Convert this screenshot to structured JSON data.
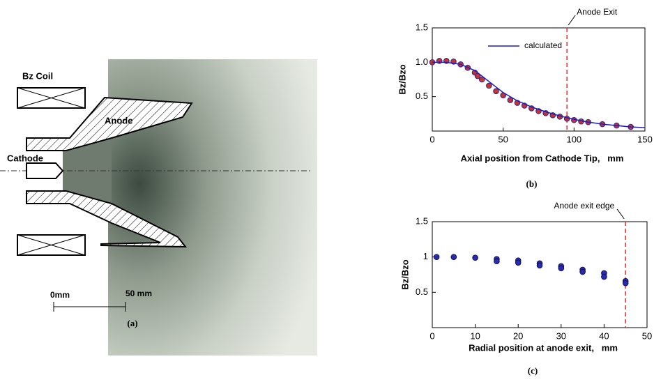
{
  "panel_a": {
    "coil": "Bz Coil",
    "anode": "Anode",
    "cathode": "Cathode",
    "scale_start": "0mm",
    "scale_end": "50 mm",
    "caption": "(a)"
  },
  "chart_data": [
    {
      "type": "scatter",
      "caption": "(b)",
      "ylabel": "Bz/Bzo",
      "xlabel": "Axial position from Cathode Tip,   mm",
      "xlim": [
        0,
        150
      ],
      "xticks": [
        0,
        50,
        100,
        150
      ],
      "ylim": [
        0,
        1.5
      ],
      "yticks": [
        0.5,
        {
          "value": 1,
          "label": "1.0"
        },
        1.5
      ],
      "legend": "upper left",
      "annotations": [
        {
          "text": "Anode Exit",
          "x": 95,
          "color": "#e03030"
        }
      ],
      "series": [
        {
          "style": "marker",
          "color": "#c8322a",
          "edgecolor": "#1f2a9c",
          "x": [
            0,
            5,
            10,
            15,
            20,
            25,
            30,
            32,
            35,
            40,
            45,
            50,
            55,
            60,
            65,
            70,
            75,
            80,
            85,
            90,
            95,
            100,
            105,
            110,
            120,
            130,
            140
          ],
          "values": [
            1.0,
            1.02,
            1.02,
            1.01,
            0.97,
            0.92,
            0.85,
            0.8,
            0.75,
            0.66,
            0.58,
            0.52,
            0.45,
            0.41,
            0.37,
            0.33,
            0.29,
            0.26,
            0.23,
            0.21,
            0.18,
            0.16,
            0.14,
            0.13,
            0.1,
            0.08,
            0.06
          ]
        },
        {
          "style": "line",
          "name": "calculated",
          "color": "#1c1cc8",
          "x": [
            0,
            10,
            20,
            30,
            40,
            50,
            60,
            70,
            80,
            90,
            100,
            110,
            120,
            130,
            140,
            150
          ],
          "values": [
            1.0,
            1.0,
            0.97,
            0.88,
            0.72,
            0.56,
            0.44,
            0.35,
            0.28,
            0.22,
            0.17,
            0.13,
            0.1,
            0.08,
            0.06,
            0.05
          ]
        }
      ]
    },
    {
      "type": "scatter",
      "caption": "(c)",
      "ylabel": "Bz/Bzo",
      "xlabel": "Radial position at anode exit,   mm",
      "xlim": [
        0,
        50
      ],
      "xticks": [
        0,
        10,
        20,
        30,
        40,
        50
      ],
      "ylim": [
        0,
        1.5
      ],
      "yticks": [
        0.5,
        1,
        1.5
      ],
      "annotations": [
        {
          "text": "Anode exit edge",
          "x": 45,
          "color": "#e03030"
        }
      ],
      "series": [
        {
          "style": "marker",
          "color": "#2a2ab0",
          "edgecolor": "#10105a",
          "x": [
            1,
            5,
            10,
            15,
            15,
            20,
            20,
            25,
            25,
            30,
            30,
            35,
            35,
            40,
            40,
            45,
            45
          ],
          "values": [
            1.0,
            1.0,
            0.99,
            0.97,
            0.94,
            0.95,
            0.92,
            0.91,
            0.88,
            0.87,
            0.84,
            0.82,
            0.79,
            0.77,
            0.72,
            0.66,
            0.63
          ]
        }
      ]
    }
  ]
}
